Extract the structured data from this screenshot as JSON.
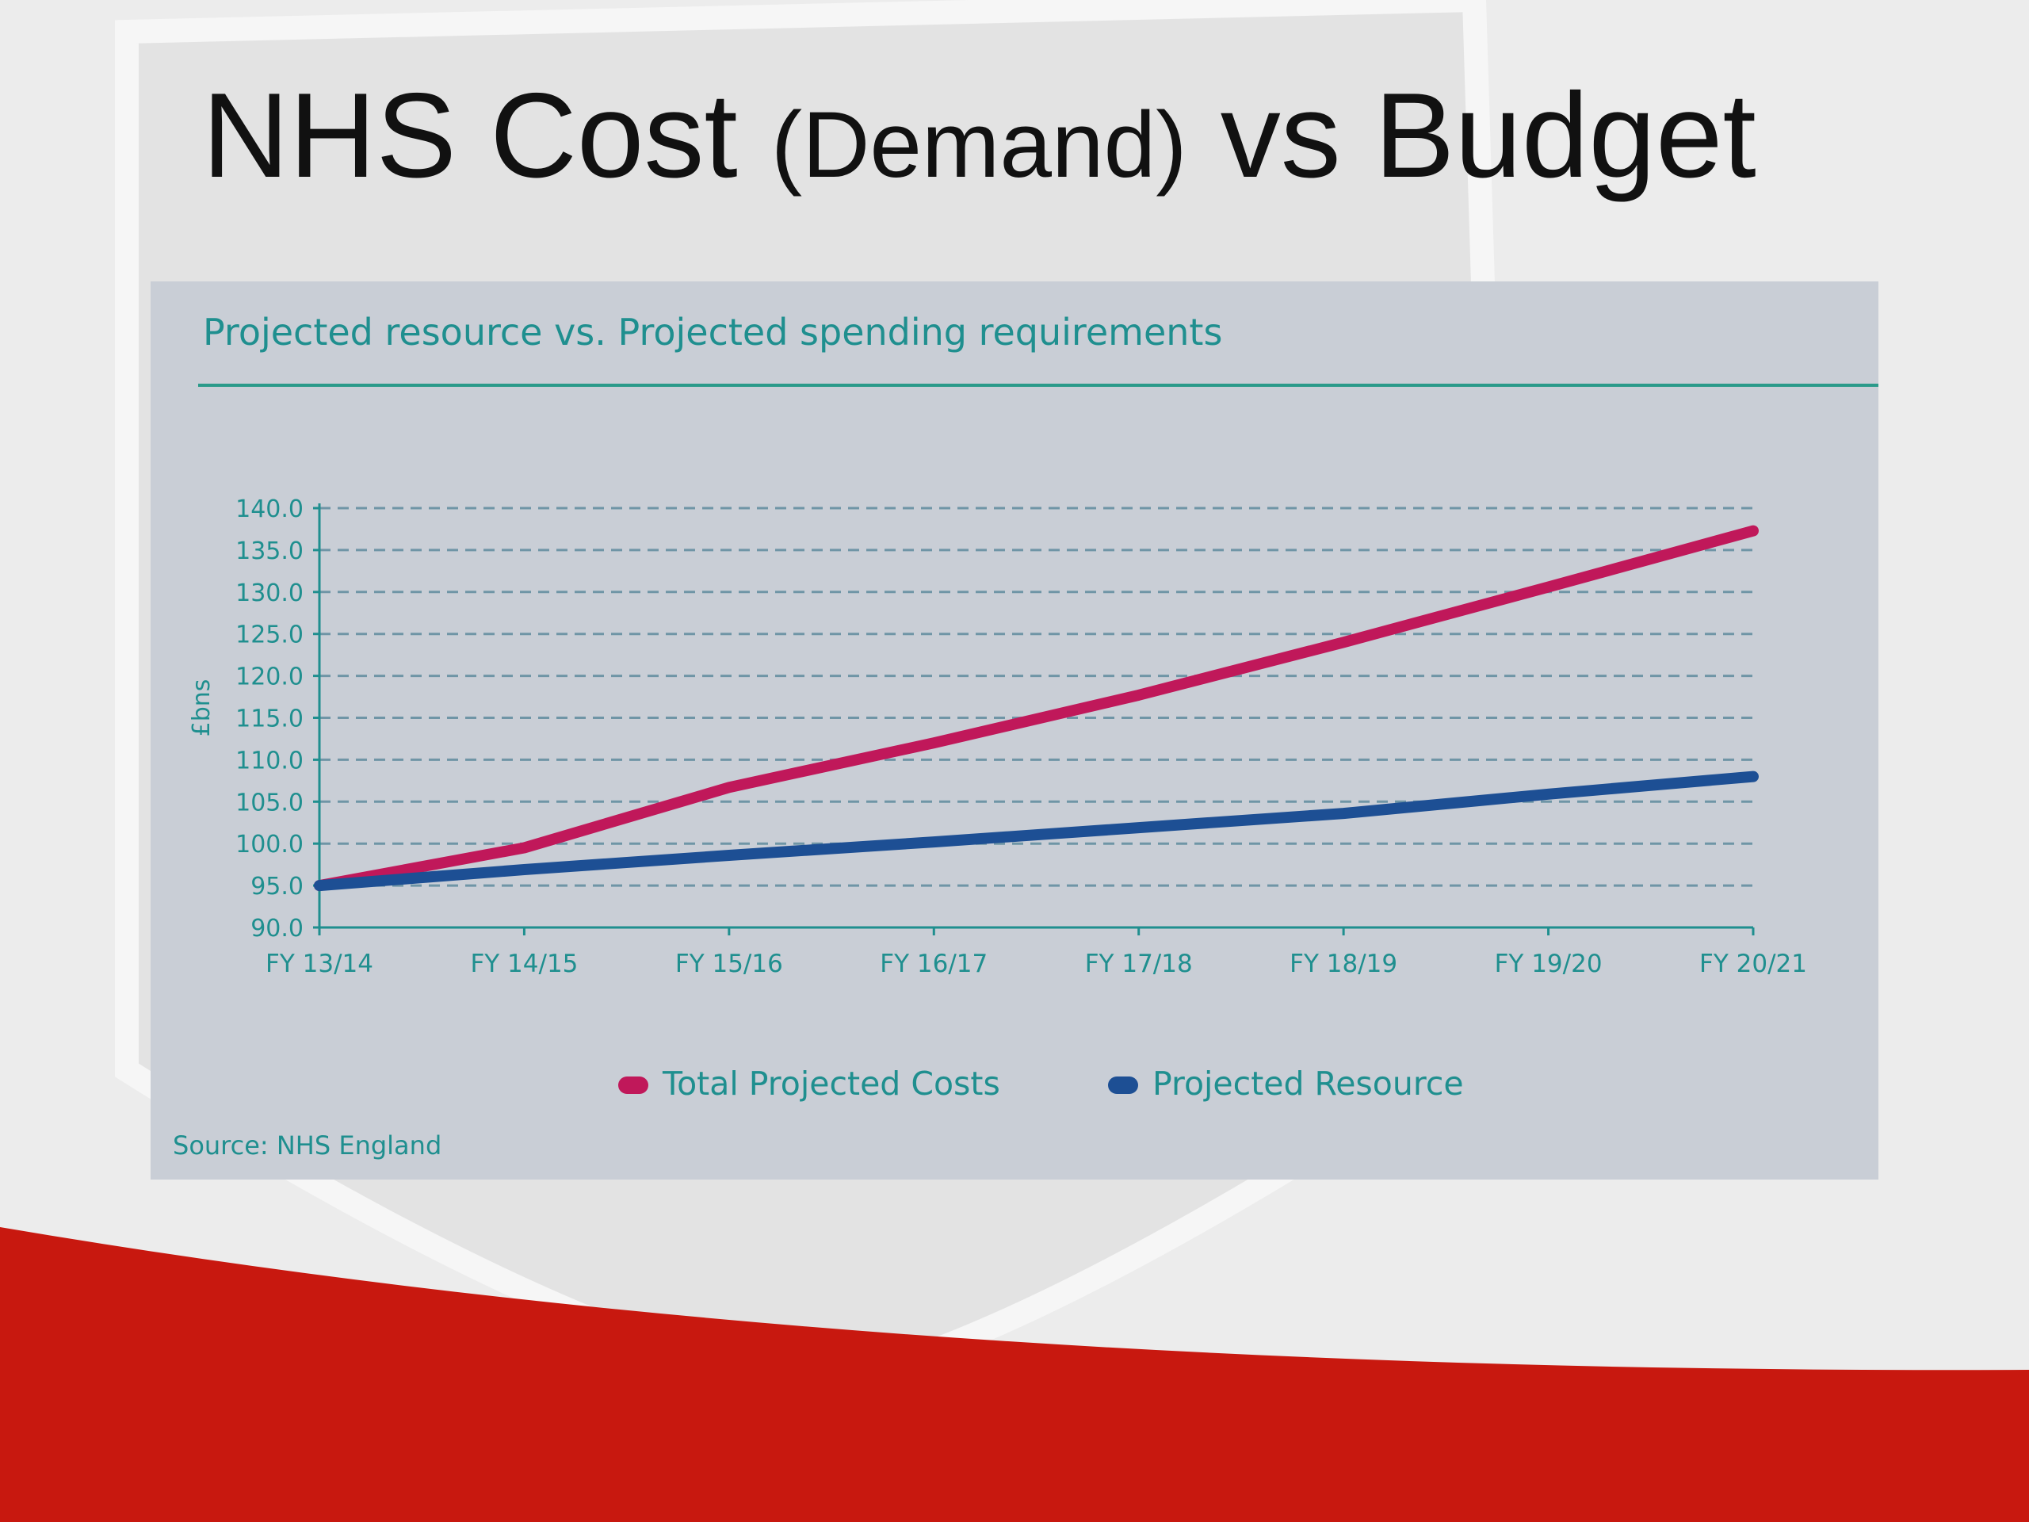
{
  "slide": {
    "title_part1": "NHS Cost",
    "title_part2": "(Demand)",
    "title_part3": "vs Budget"
  },
  "colors": {
    "accent_red": "#c8180f",
    "panel_bg": "#c9ced6",
    "teal": "#1f8f8f",
    "series_costs": "#c0185a",
    "series_resource": "#1d4f94"
  },
  "chart_data": {
    "type": "line",
    "title": "Projected resource vs. Projected spending requirements",
    "ylabel": "£bns",
    "xlabel": "",
    "categories": [
      "FY 13/14",
      "FY 14/15",
      "FY 15/16",
      "FY 16/17",
      "FY 17/18",
      "FY 18/19",
      "FY 19/20",
      "FY 20/21"
    ],
    "ylim": [
      90.0,
      140.0
    ],
    "yticks": [
      "140.0",
      "135.0",
      "130.0",
      "125.0",
      "120.0",
      "115.0",
      "110.0",
      "105.0",
      "100.0",
      "95.0",
      "90.0"
    ],
    "grid": "dashed-horizontal",
    "legend_position": "bottom",
    "series": [
      {
        "name": "Total Projected Costs",
        "color": "#c0185a",
        "values": [
          95.0,
          99.5,
          106.7,
          112.0,
          117.7,
          124.0,
          130.6,
          137.3
        ]
      },
      {
        "name": "Projected Resource",
        "color": "#1d4f94",
        "values": [
          95.0,
          96.9,
          98.6,
          100.2,
          101.9,
          103.6,
          105.9,
          108.0
        ]
      }
    ],
    "source": "Source: NHS England"
  }
}
